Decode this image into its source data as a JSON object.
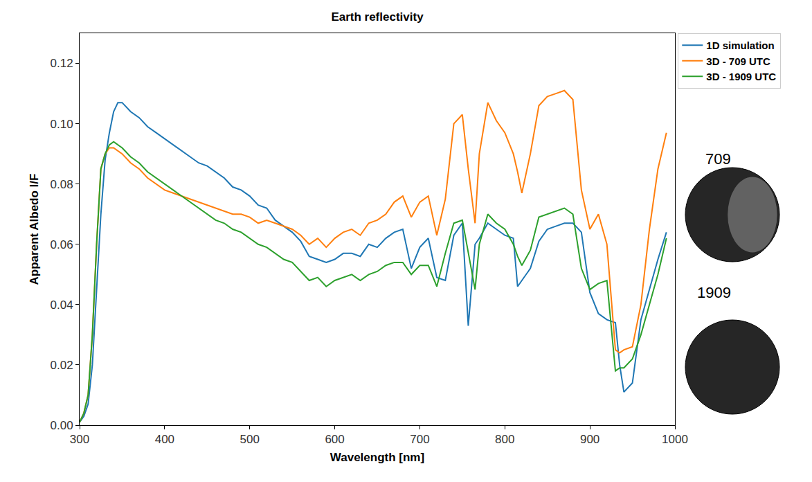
{
  "chart_data": {
    "type": "line",
    "title": "Earth reflectivity",
    "x_label": "Wavelength [nm]",
    "y_label": "Apparent Albedo I/F",
    "x": [
      300,
      305,
      310,
      315,
      320,
      325,
      330,
      335,
      340,
      345,
      350,
      360,
      370,
      380,
      390,
      400,
      410,
      420,
      430,
      440,
      450,
      460,
      470,
      480,
      490,
      500,
      510,
      520,
      530,
      540,
      550,
      560,
      570,
      580,
      590,
      600,
      610,
      620,
      630,
      640,
      650,
      660,
      670,
      680,
      690,
      700,
      710,
      720,
      730,
      740,
      750,
      757,
      765,
      770,
      780,
      790,
      800,
      810,
      815,
      820,
      830,
      840,
      850,
      860,
      870,
      880,
      890,
      900,
      910,
      920,
      930,
      935,
      940,
      950,
      960,
      970,
      980,
      990
    ],
    "series": [
      {
        "name": "1D simulation",
        "color": "#1f77b4",
        "values": [
          0.001,
          0.003,
          0.007,
          0.02,
          0.045,
          0.07,
          0.088,
          0.097,
          0.104,
          0.107,
          0.107,
          0.104,
          0.102,
          0.099,
          0.097,
          0.095,
          0.093,
          0.091,
          0.089,
          0.087,
          0.086,
          0.084,
          0.082,
          0.079,
          0.078,
          0.076,
          0.073,
          0.072,
          0.068,
          0.066,
          0.064,
          0.061,
          0.056,
          0.055,
          0.054,
          0.055,
          0.057,
          0.057,
          0.056,
          0.06,
          0.059,
          0.062,
          0.064,
          0.065,
          0.052,
          0.059,
          0.062,
          0.049,
          0.048,
          0.063,
          0.067,
          0.033,
          0.06,
          0.062,
          0.067,
          0.065,
          0.063,
          0.062,
          0.046,
          0.048,
          0.052,
          0.061,
          0.065,
          0.066,
          0.067,
          0.067,
          0.064,
          0.044,
          0.037,
          0.035,
          0.034,
          0.02,
          0.011,
          0.014,
          0.035,
          0.045,
          0.055,
          0.064
        ]
      },
      {
        "name": "3D - 709 UTC",
        "color": "#ff7f0e",
        "values": [
          0.001,
          0.004,
          0.01,
          0.03,
          0.06,
          0.085,
          0.09,
          0.092,
          0.092,
          0.091,
          0.09,
          0.087,
          0.085,
          0.082,
          0.08,
          0.078,
          0.077,
          0.076,
          0.075,
          0.074,
          0.073,
          0.072,
          0.071,
          0.07,
          0.07,
          0.069,
          0.067,
          0.068,
          0.067,
          0.066,
          0.065,
          0.063,
          0.06,
          0.062,
          0.059,
          0.062,
          0.064,
          0.065,
          0.063,
          0.067,
          0.068,
          0.07,
          0.074,
          0.076,
          0.069,
          0.074,
          0.076,
          0.063,
          0.075,
          0.1,
          0.103,
          0.085,
          0.067,
          0.09,
          0.107,
          0.101,
          0.097,
          0.09,
          0.084,
          0.077,
          0.09,
          0.106,
          0.109,
          0.11,
          0.111,
          0.108,
          0.078,
          0.065,
          0.07,
          0.06,
          0.025,
          0.024,
          0.025,
          0.026,
          0.04,
          0.065,
          0.085,
          0.097
        ]
      },
      {
        "name": "3D - 1909 UTC",
        "color": "#2ca02c",
        "values": [
          0.001,
          0.004,
          0.01,
          0.03,
          0.06,
          0.085,
          0.09,
          0.093,
          0.094,
          0.093,
          0.092,
          0.089,
          0.087,
          0.084,
          0.082,
          0.08,
          0.078,
          0.076,
          0.074,
          0.072,
          0.07,
          0.068,
          0.067,
          0.065,
          0.064,
          0.062,
          0.06,
          0.059,
          0.057,
          0.055,
          0.054,
          0.051,
          0.048,
          0.049,
          0.046,
          0.048,
          0.049,
          0.05,
          0.048,
          0.05,
          0.051,
          0.053,
          0.054,
          0.054,
          0.05,
          0.053,
          0.053,
          0.046,
          0.057,
          0.067,
          0.068,
          0.057,
          0.045,
          0.06,
          0.07,
          0.067,
          0.065,
          0.06,
          0.056,
          0.053,
          0.058,
          0.069,
          0.07,
          0.071,
          0.072,
          0.07,
          0.052,
          0.045,
          0.047,
          0.048,
          0.018,
          0.019,
          0.019,
          0.022,
          0.03,
          0.04,
          0.05,
          0.062
        ]
      }
    ],
    "xlim": [
      300,
      1000
    ],
    "xticks": [
      300,
      400,
      500,
      600,
      700,
      800,
      900,
      1000
    ],
    "ylim": [
      0,
      0.13
    ],
    "yticks": [
      {
        "value": 0,
        "label": "0.00"
      },
      {
        "value": 0.02,
        "label": "0.02"
      },
      {
        "value": 0.04,
        "label": "0.04"
      },
      {
        "value": 0.06,
        "label": "0.06"
      },
      {
        "value": 0.08,
        "label": "0.08"
      },
      {
        "value": 0.1,
        "label": "0.10"
      },
      {
        "value": 0.12,
        "label": "0.12"
      }
    ],
    "grid": false,
    "legend": "right",
    "annotations": [
      {
        "text": "709"
      },
      {
        "text": "1909"
      }
    ]
  }
}
